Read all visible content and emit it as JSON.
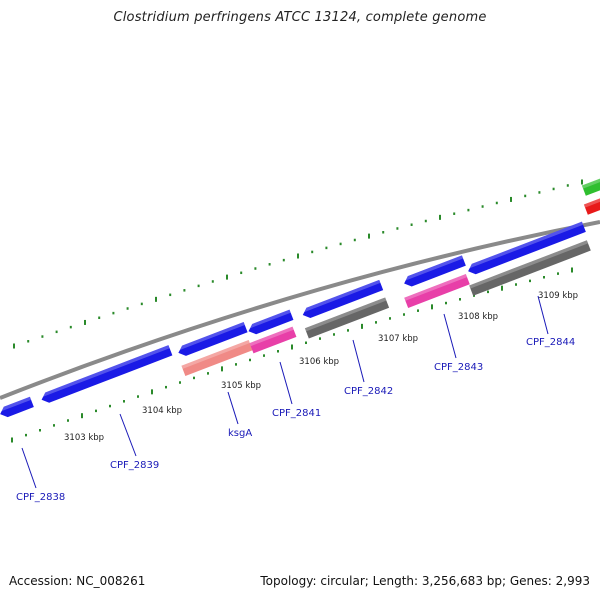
{
  "title": "Clostridium perfringens ATCC 13124, complete genome",
  "footer": {
    "accession": "Accession: NC_008261",
    "summary": "Topology: circular; Length: 3,256,683 bp; Genes: 2,993"
  },
  "colors": {
    "cds_forward": "#1a1ae6",
    "gc_skew": "#e83fa8",
    "gc_low": "#f08a86",
    "rna_track": "#666666",
    "ticks": "#2a8a2a",
    "label_blue": "#1a1ab8",
    "backbone": "#8c8c8c"
  },
  "kbp_labels": [
    "3103 kbp",
    "3104 kbp",
    "3105 kbp",
    "3106 kbp",
    "3107 kbp",
    "3108 kbp",
    "3109 kbp"
  ],
  "gene_labels": [
    "CPF_2838",
    "CPF_2839",
    "ksgA",
    "CPF_2841",
    "CPF_2842",
    "CPF_2843",
    "CPF_2844"
  ]
}
